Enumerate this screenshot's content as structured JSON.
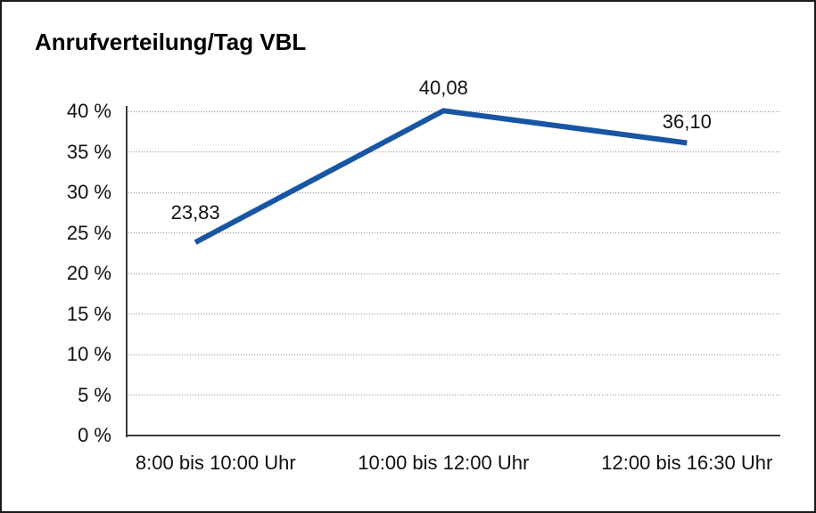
{
  "frame": {
    "background": "#ffffff",
    "border_color": "#1a1a1a"
  },
  "chart_data": {
    "type": "line",
    "title": "Anrufverteilung/Tag VBL",
    "categories": [
      "8:00 bis 10:00 Uhr",
      "10:00 bis 12:00 Uhr",
      "12:00 bis 16:30 Uhr"
    ],
    "series": [
      {
        "values": [
          23.83,
          40.08,
          36.1
        ],
        "data_labels": [
          "23,83",
          "40,08",
          "36,10"
        ],
        "color": "#1856a3"
      }
    ],
    "xlabel": "",
    "ylabel": "",
    "ylim": [
      0,
      40
    ],
    "y_tick_step": 5,
    "y_tick_labels": [
      "0 %",
      "5 %",
      "10 %",
      "15 %",
      "20 %",
      "25 %",
      "30 %",
      "35 %",
      "40 %"
    ],
    "grid": "horizontal-dotted",
    "gridline_color": "#8f8f8f",
    "axis_color": "#3a3a3a",
    "text_color": "#111111",
    "legend_position": "none"
  }
}
